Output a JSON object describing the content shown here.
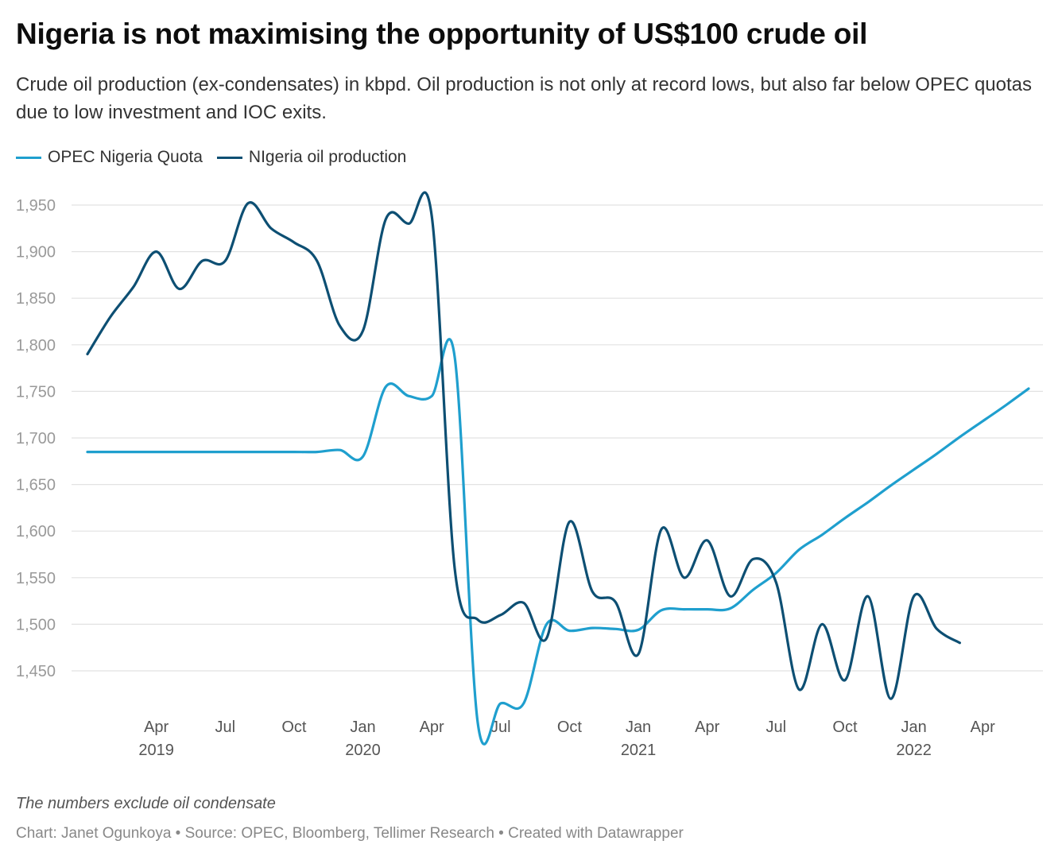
{
  "header": {
    "title": "Nigeria is not maximising the opportunity of US$100 crude oil",
    "subtitle": "Crude oil production (ex-condensates) in kbpd. Oil production is not only at record lows, but also far below OPEC quotas due to low investment and IOC exits."
  },
  "footer": {
    "note": "The numbers exclude oil condensate",
    "credit": "Chart: Janet Ogunkoya • Source: OPEC, Bloomberg, Tellimer Research • Created with Datawrapper"
  },
  "colors": {
    "quota": "#1f9fce",
    "production": "#0d4f73",
    "grid": "#e2e2e2"
  },
  "chart_data": {
    "type": "line",
    "title": "Nigeria is not maximising the opportunity of US$100 crude oil",
    "xlabel": "",
    "ylabel": "",
    "ylim": [
      1400,
      1970
    ],
    "xlim": [
      "2019-01",
      "2022-07"
    ],
    "yticks": [
      1450,
      1500,
      1550,
      1600,
      1650,
      1700,
      1750,
      1800,
      1850,
      1900,
      1950
    ],
    "ytick_labels": [
      "1,450",
      "1,500",
      "1,550",
      "1,600",
      "1,650",
      "1,700",
      "1,750",
      "1,800",
      "1,850",
      "1,900",
      "1,950"
    ],
    "xticks": [
      {
        "date": "2019-04",
        "label": "Apr",
        "year": "2019"
      },
      {
        "date": "2019-07",
        "label": "Jul",
        "year": ""
      },
      {
        "date": "2019-10",
        "label": "Oct",
        "year": ""
      },
      {
        "date": "2020-01",
        "label": "Jan",
        "year": "2020"
      },
      {
        "date": "2020-04",
        "label": "Apr",
        "year": ""
      },
      {
        "date": "2020-07",
        "label": "Jul",
        "year": ""
      },
      {
        "date": "2020-10",
        "label": "Oct",
        "year": ""
      },
      {
        "date": "2021-01",
        "label": "Jan",
        "year": "2021"
      },
      {
        "date": "2021-04",
        "label": "Apr",
        "year": ""
      },
      {
        "date": "2021-07",
        "label": "Jul",
        "year": ""
      },
      {
        "date": "2021-10",
        "label": "Oct",
        "year": ""
      },
      {
        "date": "2022-01",
        "label": "Jan",
        "year": "2022"
      },
      {
        "date": "2022-04",
        "label": "Apr",
        "year": ""
      }
    ],
    "grid": true,
    "legend": "top-left",
    "series": [
      {
        "name": "OPEC Nigeria Quota",
        "color": "#1f9fce",
        "points": [
          [
            "2019-01",
            1685
          ],
          [
            "2019-02",
            1685
          ],
          [
            "2019-03",
            1685
          ],
          [
            "2019-04",
            1685
          ],
          [
            "2019-05",
            1685
          ],
          [
            "2019-06",
            1685
          ],
          [
            "2019-07",
            1685
          ],
          [
            "2019-08",
            1685
          ],
          [
            "2019-09",
            1685
          ],
          [
            "2019-10",
            1685
          ],
          [
            "2019-11",
            1685
          ],
          [
            "2019-12",
            1687
          ],
          [
            "2020-01",
            1680
          ],
          [
            "2020-02",
            1755
          ],
          [
            "2020-03",
            1745
          ],
          [
            "2020-04",
            1745
          ],
          [
            "2020-05",
            1787
          ],
          [
            "2020-06",
            1395
          ],
          [
            "2020-07",
            1415
          ],
          [
            "2020-08",
            1415
          ],
          [
            "2020-09",
            1500
          ],
          [
            "2020-10",
            1493
          ],
          [
            "2020-11",
            1496
          ],
          [
            "2020-12",
            1495
          ],
          [
            "2021-01",
            1494
          ],
          [
            "2021-02",
            1515
          ],
          [
            "2021-03",
            1516
          ],
          [
            "2021-04",
            1516
          ],
          [
            "2021-05",
            1517
          ],
          [
            "2021-06",
            1537
          ],
          [
            "2021-07",
            1555
          ],
          [
            "2021-08",
            1580
          ],
          [
            "2021-09",
            1596
          ],
          [
            "2021-10",
            1614
          ],
          [
            "2021-11",
            1631
          ],
          [
            "2021-12",
            1649
          ],
          [
            "2022-01",
            1666
          ],
          [
            "2022-02",
            1683
          ],
          [
            "2022-03",
            1701
          ],
          [
            "2022-04",
            1718
          ],
          [
            "2022-05",
            1735
          ],
          [
            "2022-06",
            1753
          ]
        ]
      },
      {
        "name": "NIgeria oil production",
        "color": "#0d4f73",
        "points": [
          [
            "2019-01",
            1790
          ],
          [
            "2019-02",
            1830
          ],
          [
            "2019-03",
            1862
          ],
          [
            "2019-04",
            1900
          ],
          [
            "2019-05",
            1860
          ],
          [
            "2019-06",
            1890
          ],
          [
            "2019-07",
            1890
          ],
          [
            "2019-08",
            1952
          ],
          [
            "2019-09",
            1925
          ],
          [
            "2019-10",
            1910
          ],
          [
            "2019-11",
            1890
          ],
          [
            "2019-12",
            1820
          ],
          [
            "2020-01",
            1815
          ],
          [
            "2020-02",
            1935
          ],
          [
            "2020-03",
            1930
          ],
          [
            "2020-04",
            1938
          ],
          [
            "2020-05",
            1560
          ],
          [
            "2020-06",
            1505
          ],
          [
            "2020-07",
            1510
          ],
          [
            "2020-08",
            1523
          ],
          [
            "2020-09",
            1485
          ],
          [
            "2020-10",
            1610
          ],
          [
            "2020-11",
            1535
          ],
          [
            "2020-12",
            1524
          ],
          [
            "2021-01",
            1468
          ],
          [
            "2021-02",
            1602
          ],
          [
            "2021-03",
            1550
          ],
          [
            "2021-04",
            1590
          ],
          [
            "2021-05",
            1530
          ],
          [
            "2021-06",
            1570
          ],
          [
            "2021-07",
            1545
          ],
          [
            "2021-08",
            1430
          ],
          [
            "2021-09",
            1500
          ],
          [
            "2021-10",
            1440
          ],
          [
            "2021-11",
            1530
          ],
          [
            "2021-12",
            1420
          ],
          [
            "2022-01",
            1530
          ],
          [
            "2022-02",
            1495
          ],
          [
            "2022-03",
            1480
          ]
        ]
      }
    ]
  }
}
